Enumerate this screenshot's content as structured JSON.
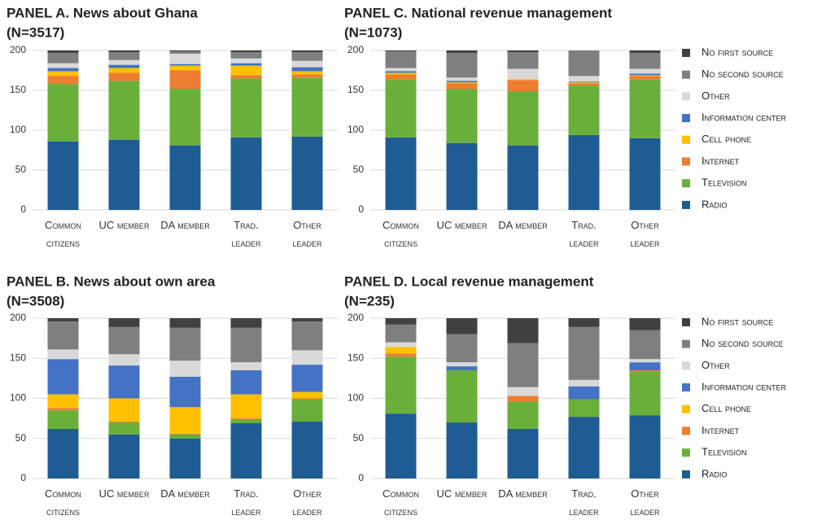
{
  "chart_data": [
    {
      "type": "bar",
      "stacked": true,
      "title": "PANEL A. News about Ghana",
      "subtitle": "(N=3517)",
      "categories": [
        "Common citizens",
        "UC member",
        "DA member",
        "Trad. leader",
        "Other leader"
      ],
      "ylim": [
        0,
        200
      ],
      "yticks": [
        0,
        50,
        100,
        150,
        200
      ],
      "grid": true,
      "series": [
        {
          "name": "Radio",
          "color": "#1f5c94",
          "values": [
            86,
            88,
            81,
            91,
            92
          ]
        },
        {
          "name": "Television",
          "color": "#6aaf3a",
          "values": [
            72,
            74,
            71,
            74,
            74
          ]
        },
        {
          "name": "Internet",
          "color": "#ed7d31",
          "values": [
            10,
            10,
            23,
            4,
            4
          ]
        },
        {
          "name": "Cell phone",
          "color": "#ffc000",
          "values": [
            6,
            6,
            6,
            12,
            4
          ]
        },
        {
          "name": "Information center",
          "color": "#4472c4",
          "values": [
            4,
            4,
            2,
            3,
            5
          ]
        },
        {
          "name": "Other",
          "color": "#d9d9d9",
          "values": [
            6,
            6,
            13,
            6,
            8
          ]
        },
        {
          "name": "No second source",
          "color": "#7f7f7f",
          "values": [
            13,
            10,
            3,
            8,
            11
          ]
        },
        {
          "name": "No first source",
          "color": "#404040",
          "values": [
            3,
            2,
            1,
            2,
            2
          ]
        }
      ]
    },
    {
      "type": "bar",
      "stacked": true,
      "title": "PANEL B. News about own area",
      "subtitle": "(N=3508)",
      "categories": [
        "Common citizens",
        "UC member",
        "DA member",
        "Trad. leader",
        "Other leader"
      ],
      "ylim": [
        0,
        200
      ],
      "yticks": [
        0,
        50,
        100,
        150,
        200
      ],
      "grid": true,
      "series": [
        {
          "name": "Radio",
          "color": "#1f5c94",
          "values": [
            62,
            55,
            50,
            69,
            71
          ]
        },
        {
          "name": "Television",
          "color": "#6aaf3a",
          "values": [
            23,
            15,
            5,
            5,
            28
          ]
        },
        {
          "name": "Internet",
          "color": "#ed7d31",
          "values": [
            3,
            1,
            1,
            1,
            1
          ]
        },
        {
          "name": "Cell phone",
          "color": "#ffc000",
          "values": [
            17,
            29,
            33,
            30,
            8
          ]
        },
        {
          "name": "Information center",
          "color": "#4472c4",
          "values": [
            44,
            41,
            38,
            30,
            34
          ]
        },
        {
          "name": "Other",
          "color": "#d9d9d9",
          "values": [
            12,
            14,
            20,
            10,
            18
          ]
        },
        {
          "name": "No second source",
          "color": "#7f7f7f",
          "values": [
            35,
            34,
            41,
            43,
            36
          ]
        },
        {
          "name": "No first source",
          "color": "#404040",
          "values": [
            4,
            11,
            12,
            12,
            4
          ]
        }
      ]
    },
    {
      "type": "bar",
      "stacked": true,
      "title": "PANEL C. National revenue management",
      "subtitle": "(N=1073)",
      "categories": [
        "Common citizens",
        "UC member",
        "DA member",
        "Trad. leader",
        "Other leader"
      ],
      "ylim": [
        0,
        200
      ],
      "yticks": [
        0,
        50,
        100,
        150,
        200
      ],
      "grid": true,
      "series": [
        {
          "name": "Radio",
          "color": "#1f5c94",
          "values": [
            91,
            84,
            81,
            94,
            90
          ]
        },
        {
          "name": "Television",
          "color": "#6aaf3a",
          "values": [
            73,
            68,
            68,
            62,
            74
          ]
        },
        {
          "name": "Internet",
          "color": "#ed7d31",
          "values": [
            6,
            7,
            14,
            3,
            4
          ]
        },
        {
          "name": "Cell phone",
          "color": "#ffc000",
          "values": [
            2,
            1,
            1,
            1,
            1
          ]
        },
        {
          "name": "Information center",
          "color": "#4472c4",
          "values": [
            2,
            2,
            0,
            1,
            2
          ]
        },
        {
          "name": "Other",
          "color": "#d9d9d9",
          "values": [
            4,
            4,
            13,
            7,
            6
          ]
        },
        {
          "name": "No second source",
          "color": "#7f7f7f",
          "values": [
            21,
            31,
            21,
            32,
            20
          ]
        },
        {
          "name": "No first source",
          "color": "#404040",
          "values": [
            1,
            3,
            2,
            0,
            3
          ]
        }
      ]
    },
    {
      "type": "bar",
      "stacked": true,
      "title": "PANEL D. Local revenue management",
      "subtitle": "(N=235)",
      "categories": [
        "Common citizens",
        "UC member",
        "DA member",
        "Trad. leader",
        "Other leader"
      ],
      "ylim": [
        0,
        200
      ],
      "yticks": [
        0,
        50,
        100,
        150,
        200
      ],
      "grid": true,
      "series": [
        {
          "name": "Radio",
          "color": "#1f5c94",
          "values": [
            81,
            70,
            62,
            77,
            79
          ]
        },
        {
          "name": "Television",
          "color": "#6aaf3a",
          "values": [
            71,
            65,
            34,
            22,
            54
          ]
        },
        {
          "name": "Internet",
          "color": "#ed7d31",
          "values": [
            4,
            0,
            7,
            0,
            2
          ]
        },
        {
          "name": "Cell phone",
          "color": "#ffc000",
          "values": [
            8,
            0,
            0,
            0,
            0
          ]
        },
        {
          "name": "Information center",
          "color": "#4472c4",
          "values": [
            0,
            5,
            0,
            16,
            10
          ]
        },
        {
          "name": "Other",
          "color": "#d9d9d9",
          "values": [
            6,
            5,
            11,
            8,
            4
          ]
        },
        {
          "name": "No second source",
          "color": "#7f7f7f",
          "values": [
            22,
            35,
            55,
            66,
            36
          ]
        },
        {
          "name": "No first source",
          "color": "#404040",
          "values": [
            8,
            20,
            31,
            11,
            15
          ]
        }
      ]
    }
  ]
}
